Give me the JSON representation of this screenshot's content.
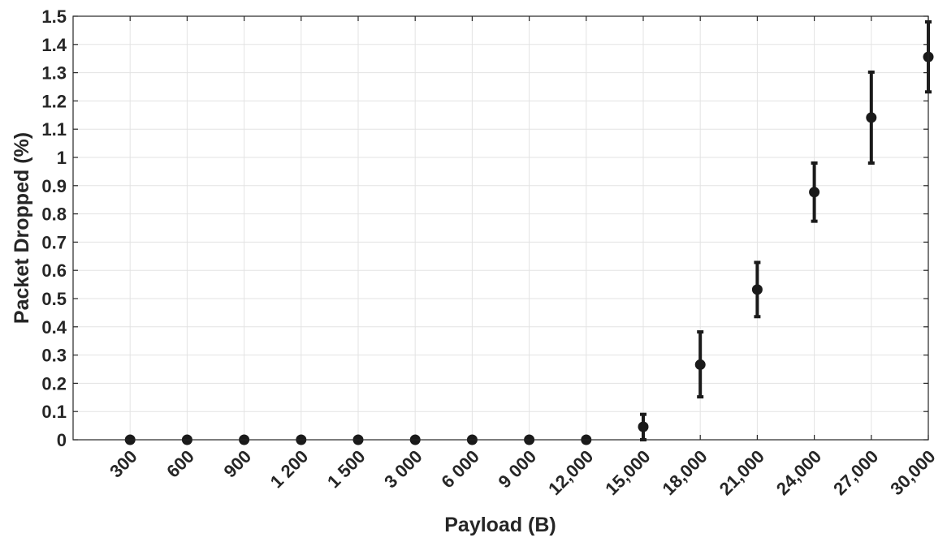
{
  "chart_data": {
    "type": "scatter",
    "title": "",
    "xlabel": "Payload (B)",
    "ylabel": "Packet Dropped (%)",
    "categories": [
      "300",
      "600",
      "900",
      "1 200",
      "1 500",
      "3 000",
      "6 000",
      "9 000",
      "12,000",
      "15,000",
      "18,000",
      "21,000",
      "24,000",
      "27,000",
      "30,000"
    ],
    "values": [
      0,
      0,
      0,
      0,
      0,
      0,
      0,
      0,
      0,
      0.046,
      0.266,
      0.532,
      0.877,
      1.141,
      1.356
    ],
    "error_low": [
      0,
      0,
      0,
      0,
      0,
      0,
      0,
      0,
      0,
      0.0,
      0.152,
      0.436,
      0.774,
      0.98,
      1.232
    ],
    "error_high": [
      0,
      0,
      0,
      0,
      0,
      0,
      0,
      0,
      0,
      0.09,
      0.382,
      0.628,
      0.98,
      1.302,
      1.48
    ],
    "ylim": [
      0,
      1.5
    ],
    "yticks": [
      0,
      0.1,
      0.2,
      0.3,
      0.4,
      0.5,
      0.6,
      0.7,
      0.8,
      0.9,
      1,
      1.1,
      1.2,
      1.3,
      1.4,
      1.5
    ],
    "ytick_labels": [
      "0",
      "0.1",
      "0.2",
      "0.3",
      "0.4",
      "0.5",
      "0.6",
      "0.7",
      "0.8",
      "0.9",
      "1",
      "1.1",
      "1.2",
      "1.3",
      "1.4",
      "1.5"
    ],
    "grid": true,
    "legend": "none",
    "colors": {
      "marker": "#1a1a1a",
      "axis": "#262626",
      "grid": "#e3e3e3"
    }
  }
}
